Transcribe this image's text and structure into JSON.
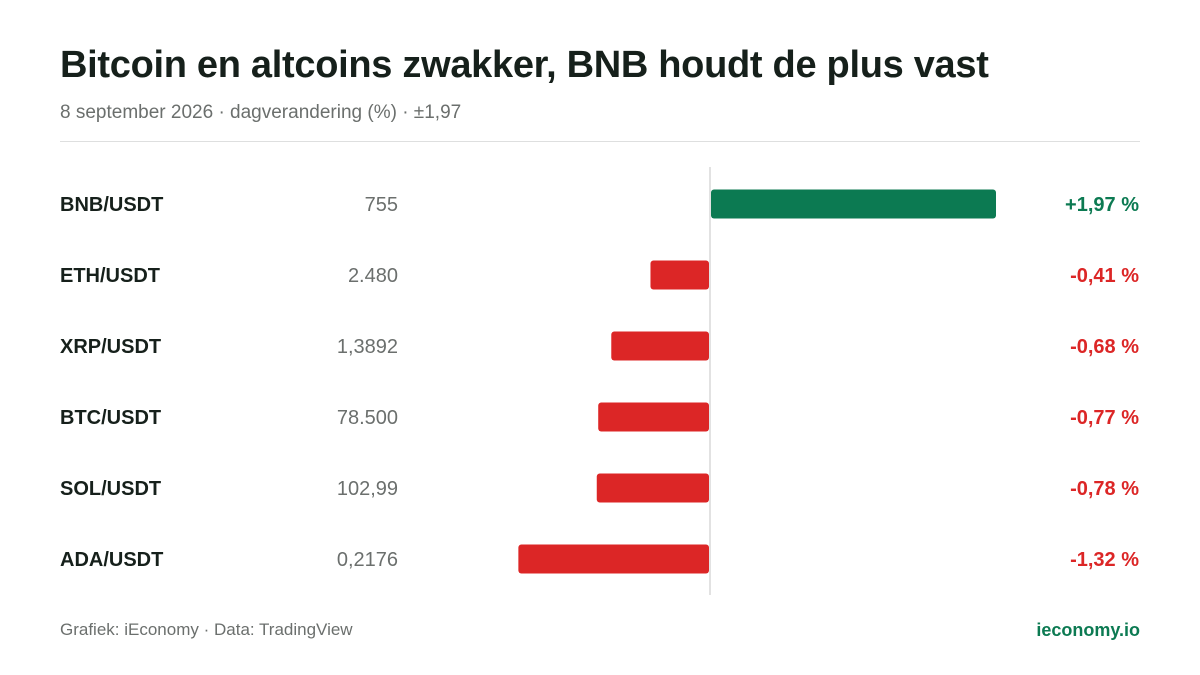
{
  "header": {
    "title": "Bitcoin en altcoins zwakker, BNB houdt de plus vast",
    "subtitle": "8 september 2026 · dagverandering (%) · ±1,97"
  },
  "footer": {
    "source": "Grafiek: iEconomy · Data: TradingView",
    "brand": "ieconomy.io"
  },
  "colors": {
    "positive": "#0c7a52",
    "negative": "#dc2626",
    "label": "#16201b",
    "price": "#6b6f6d",
    "axis": "#d9d9d9"
  },
  "chart_data": {
    "type": "bar",
    "orientation": "horizontal",
    "categories": [
      "BNB/USDT",
      "ETH/USDT",
      "XRP/USDT",
      "BTC/USDT",
      "SOL/USDT",
      "ADA/USDT"
    ],
    "prices": [
      "755",
      "2.480",
      "1,3892",
      "78.500",
      "102,99",
      "0,2176"
    ],
    "values": [
      1.97,
      -0.41,
      -0.68,
      -0.77,
      -0.78,
      -1.32
    ],
    "value_labels": [
      "+1,97 %",
      "-0,41 %",
      "-0,68 %",
      "-0,77 %",
      "-0,78 %",
      "-1,32 %"
    ],
    "xlim": [
      -1.97,
      1.97
    ],
    "grid": false
  }
}
